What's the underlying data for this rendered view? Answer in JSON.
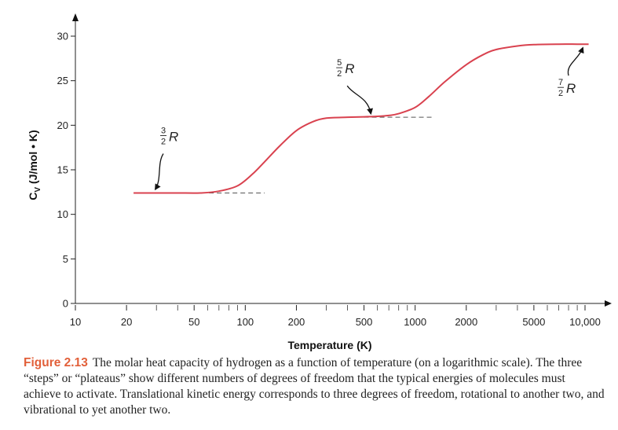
{
  "chart_data": {
    "type": "line",
    "xscale": "log",
    "xlabel": "Temperature (K)",
    "ylabel": "Cv (J/mol • K)",
    "ylabel_main": "C",
    "ylabel_sub": "V",
    "ylabel_units": " (J/mol • K)",
    "xlim": [
      10,
      11000
    ],
    "ylim": [
      0,
      30
    ],
    "xticks": [
      {
        "value": 10,
        "label": "10"
      },
      {
        "value": 20,
        "label": "20"
      },
      {
        "value": 50,
        "label": "50"
      },
      {
        "value": 100,
        "label": "100"
      },
      {
        "value": 200,
        "label": "200"
      },
      {
        "value": 500,
        "label": "500"
      },
      {
        "value": 1000,
        "label": "1000"
      },
      {
        "value": 2000,
        "label": "2000"
      },
      {
        "value": 5000,
        "label": "5000"
      },
      {
        "value": 10000,
        "label": "10,000"
      }
    ],
    "yticks": [
      {
        "value": 0,
        "label": "0"
      },
      {
        "value": 5,
        "label": "5"
      },
      {
        "value": 10,
        "label": "10"
      },
      {
        "value": 15,
        "label": "15"
      },
      {
        "value": 20,
        "label": "20"
      },
      {
        "value": 25,
        "label": "25"
      },
      {
        "value": 30,
        "label": "30"
      }
    ],
    "series": [
      {
        "color": "#d9424f",
        "x": [
          22,
          30,
          40,
          55,
          70,
          90,
          110,
          130,
          160,
          200,
          250,
          300,
          400,
          500,
          600,
          700,
          800,
          1000,
          1200,
          1500,
          2000,
          2500,
          3000,
          4000,
          5000,
          7000,
          9000,
          10500
        ],
        "y": [
          12.4,
          12.4,
          12.4,
          12.4,
          12.6,
          13.2,
          14.5,
          15.9,
          17.7,
          19.4,
          20.4,
          20.8,
          20.9,
          20.95,
          21.0,
          21.1,
          21.3,
          22.0,
          23.2,
          24.9,
          26.8,
          27.9,
          28.5,
          28.9,
          29.05,
          29.1,
          29.1,
          29.1
        ]
      }
    ],
    "reference_lines": [
      {
        "x_start": 55,
        "x_end": 130,
        "y": 12.4
      },
      {
        "x_start": 500,
        "x_end": 1300,
        "y": 20.9
      }
    ],
    "annotations": [
      {
        "numerator": "3",
        "denominator": "2",
        "symbol": "R",
        "points_to_x": 29,
        "points_to_y": 12.4
      },
      {
        "numerator": "5",
        "denominator": "2",
        "symbol": "R",
        "points_to_x": 560,
        "points_to_y": 20.9
      },
      {
        "numerator": "7",
        "denominator": "2",
        "symbol": "R",
        "points_to_x": 9900,
        "points_to_y": 29.1
      }
    ]
  },
  "caption": {
    "label": "Figure 2.13",
    "text": "The molar heat capacity of hydrogen as a function of temperature (on a logarithmic scale). The three “steps” or “plateaus” show different numbers of degrees of freedom that the typical energies of molecules must achieve to activate. Translational kinetic energy corresponds to three degrees of freedom, rotational to another two, and vibrational to yet another two."
  }
}
